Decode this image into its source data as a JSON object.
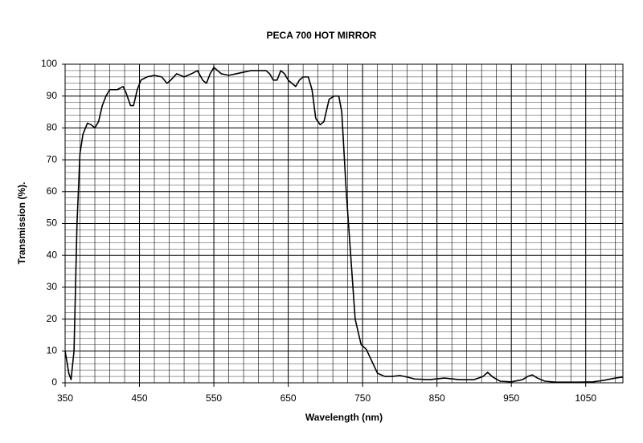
{
  "chart_data": {
    "type": "line",
    "title": "PECA 700 HOT MIRROR",
    "x_label": "Wavelength (nm)",
    "y_label": "Transmission (%).",
    "xlim": [
      350,
      1100
    ],
    "ylim": [
      0,
      100
    ],
    "xticks": [
      350,
      450,
      550,
      650,
      750,
      850,
      950,
      1050
    ],
    "yticks": [
      0,
      10,
      20,
      30,
      40,
      50,
      60,
      70,
      80,
      90,
      100
    ],
    "grid": true,
    "minor_grid": {
      "x": 20,
      "y": 2
    },
    "series": [
      {
        "color": "#000000",
        "x": [
          350,
          355,
          358,
          362,
          366,
          370,
          374,
          380,
          385,
          390,
          395,
          400,
          405,
          410,
          420,
          428,
          432,
          438,
          442,
          447,
          452,
          460,
          470,
          480,
          487,
          492,
          500,
          510,
          520,
          528,
          535,
          540,
          545,
          550,
          560,
          570,
          580,
          590,
          600,
          610,
          620,
          625,
          630,
          635,
          640,
          645,
          650,
          660,
          665,
          670,
          677,
          682,
          687,
          693,
          698,
          705,
          712,
          718,
          722,
          728,
          734,
          740,
          748,
          755,
          762,
          770,
          780,
          790,
          800,
          810,
          820,
          840,
          860,
          880,
          900,
          912,
          918,
          925,
          935,
          950,
          965,
          972,
          978,
          985,
          995,
          1010,
          1040,
          1060,
          1075,
          1090,
          1100
        ],
        "values": [
          10,
          3,
          1,
          10,
          50,
          72,
          78,
          81.5,
          81,
          80,
          82,
          87,
          90,
          92,
          92,
          93,
          91,
          87,
          87,
          92,
          95,
          96,
          96.5,
          96,
          94,
          95,
          97,
          96,
          97,
          98,
          95,
          94,
          97,
          99,
          97,
          96.5,
          97,
          97.5,
          98,
          98,
          98,
          97,
          95,
          95,
          98,
          97,
          95,
          93,
          95,
          96,
          96,
          92,
          83,
          81,
          82,
          89,
          90,
          90,
          85,
          60,
          40,
          20,
          12,
          10.5,
          7,
          3,
          2,
          2,
          2.3,
          1.8,
          1.2,
          1,
          1.5,
          1,
          1,
          2,
          3.3,
          1.8,
          0.5,
          0.3,
          1,
          2,
          2.5,
          1.5,
          0.5,
          0.2,
          0.2,
          0.3,
          0.8,
          1.5,
          1.8
        ]
      }
    ]
  }
}
